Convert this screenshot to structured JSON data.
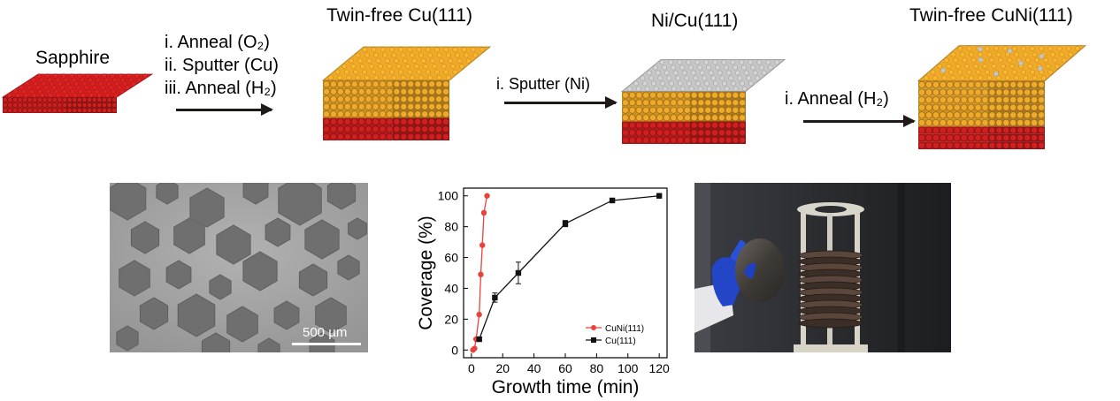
{
  "schematic": {
    "stages": [
      {
        "label": "Sapphire"
      },
      {
        "label": "Twin-free Cu(111)"
      },
      {
        "label": "Ni/Cu(111)"
      },
      {
        "label": "Twin-free CuNi(111)"
      }
    ],
    "steps_1": [
      "i. Anneal (O₂)",
      "ii. Sputter (Cu)",
      "iii. Anneal (H₂)"
    ],
    "steps_2": [
      "i. Sputter (Ni)"
    ],
    "steps_3": [
      "i. Anneal (H₂)"
    ]
  },
  "micrograph": {
    "scalebar_label": "500 µm"
  },
  "chart_data": {
    "type": "scatter",
    "xlabel": "Growth time (min)",
    "ylabel": "Coverage (%)",
    "xlim": [
      -5,
      125
    ],
    "ylim": [
      -5,
      105
    ],
    "xticks": [
      0,
      20,
      40,
      60,
      80,
      100,
      120
    ],
    "yticks": [
      0,
      20,
      40,
      60,
      80,
      100
    ],
    "legend_position": "bottom-right",
    "series": [
      {
        "name": "CuNi(111)",
        "color": "#e8423b",
        "marker": "circle",
        "x": [
          1,
          2,
          3,
          5,
          6,
          7,
          8,
          10
        ],
        "y": [
          0,
          1,
          7,
          23,
          49,
          68,
          89,
          100
        ],
        "err": [
          0,
          0,
          0,
          0,
          0,
          0,
          0,
          0
        ]
      },
      {
        "name": "Cu(111)",
        "color": "#111111",
        "marker": "square",
        "x": [
          5,
          15,
          30,
          60,
          90,
          120
        ],
        "y": [
          7,
          34,
          50,
          82,
          97,
          100
        ],
        "err": [
          1,
          3,
          7,
          2,
          1,
          0
        ]
      }
    ]
  },
  "colors": {
    "sapphire": "#d11f1f",
    "copper": "#f0aa2a",
    "nickel": "#c6c6c6",
    "arrow": "#1f1a17"
  }
}
